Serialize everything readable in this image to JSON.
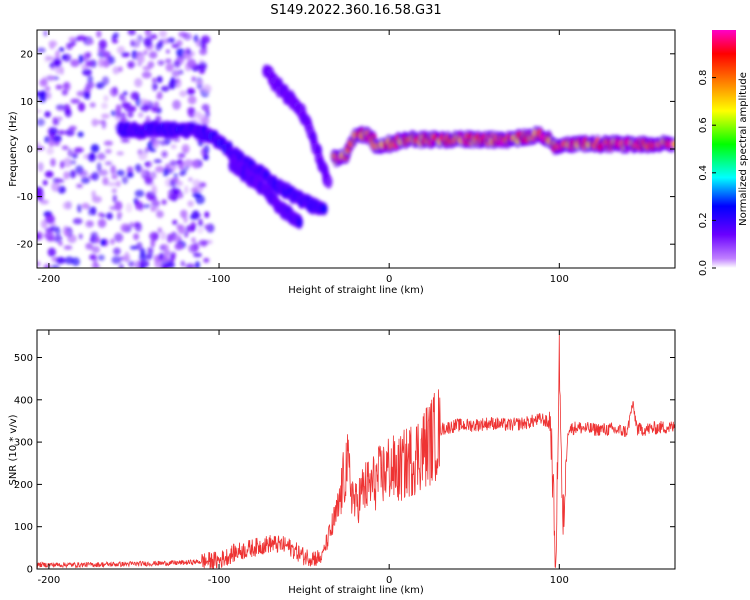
{
  "title": "S149.2022.360.16.58.G31",
  "chart_data": [
    {
      "type": "heatmap",
      "xlabel": "Height of straight line (km)",
      "ylabel": "Frequency (Hz)",
      "xlim": [
        -207,
        168
      ],
      "ylim": [
        -25,
        25
      ],
      "xticks": [
        -200,
        -100,
        0,
        100
      ],
      "yticks": [
        -20,
        -10,
        0,
        10,
        20
      ],
      "colorbar": {
        "label": "Normalized spectral amplitude",
        "range": [
          0,
          1
        ],
        "ticks": [
          0.0,
          0.2,
          0.4,
          0.6,
          0.8
        ],
        "tick_labels": [
          "0.0",
          "0.2",
          "0.4",
          "0.6",
          "0.8"
        ],
        "colormap": [
          "#ffffff",
          "#8a2be2",
          "#0000ff",
          "#00ffff",
          "#00ff00",
          "#ffff00",
          "#ff8000",
          "#ff0000",
          "#ff00c8"
        ]
      },
      "features": [
        {
          "name": "noise",
          "x": [
            -207,
            -105
          ],
          "y": [
            -25,
            25
          ],
          "level": 0.15
        },
        {
          "name": "trace-left",
          "points": [
            [
              -158,
              4
            ],
            [
              -145,
              4
            ],
            [
              -130,
              4
            ],
            [
              -115,
              4
            ],
            [
              -105,
              3
            ],
            [
              -95,
              0
            ],
            [
              -85,
              -3
            ],
            [
              -75,
              -5
            ],
            [
              -65,
              -8
            ],
            [
              -55,
              -10
            ],
            [
              -45,
              -12
            ],
            [
              -38,
              -12
            ]
          ],
          "level": 0.25
        },
        {
          "name": "trace-lower-branch",
          "points": [
            [
              -92,
              -3
            ],
            [
              -82,
              -6
            ],
            [
              -72,
              -9
            ],
            [
              -62,
              -13
            ],
            [
              -52,
              -15
            ]
          ],
          "level": 0.2
        },
        {
          "name": "trace-upper-branch",
          "points": [
            [
              -72,
              16
            ],
            [
              -62,
              12
            ],
            [
              -52,
              8
            ],
            [
              -45,
              3
            ],
            [
              -40,
              -3
            ],
            [
              -35,
              -8
            ]
          ],
          "level": 0.15
        },
        {
          "name": "trace-main",
          "points": [
            [
              -33,
              -2
            ],
            [
              -25,
              -1
            ],
            [
              -20,
              3
            ],
            [
              -12,
              3
            ],
            [
              -7,
              0
            ],
            [
              0,
              1
            ],
            [
              10,
              2
            ],
            [
              30,
              2
            ],
            [
              50,
              2
            ],
            [
              70,
              2
            ],
            [
              80,
              2.5
            ],
            [
              88,
              3
            ],
            [
              95,
              2
            ],
            [
              98,
              0
            ],
            [
              105,
              1
            ],
            [
              130,
              1
            ],
            [
              168,
              1
            ]
          ],
          "level": 0.9
        }
      ]
    },
    {
      "type": "line",
      "xlabel": "Height of straight line (km)",
      "ylabel": "SNR (10 * v/v)",
      "xlim": [
        -207,
        168
      ],
      "ylim": [
        0,
        565
      ],
      "xticks": [
        -200,
        -100,
        0,
        100
      ],
      "yticks": [
        0,
        100,
        200,
        300,
        400,
        500
      ],
      "color": "#ee3333",
      "x": [
        -207,
        -180,
        -150,
        -120,
        -100,
        -90,
        -80,
        -70,
        -60,
        -50,
        -40,
        -30,
        -25,
        -20,
        -15,
        -10,
        -5,
        0,
        5,
        10,
        15,
        20,
        25,
        30,
        40,
        50,
        60,
        70,
        80,
        90,
        95,
        98,
        100,
        102,
        105,
        110,
        120,
        130,
        140,
        143,
        146,
        150,
        160,
        168
      ],
      "y": [
        10,
        10,
        12,
        15,
        20,
        40,
        50,
        60,
        55,
        30,
        25,
        140,
        250,
        150,
        190,
        200,
        220,
        240,
        230,
        250,
        265,
        285,
        305,
        330,
        340,
        340,
        345,
        340,
        345,
        355,
        340,
        0,
        520,
        80,
        330,
        335,
        330,
        330,
        325,
        390,
        330,
        330,
        335,
        335
      ]
    }
  ]
}
